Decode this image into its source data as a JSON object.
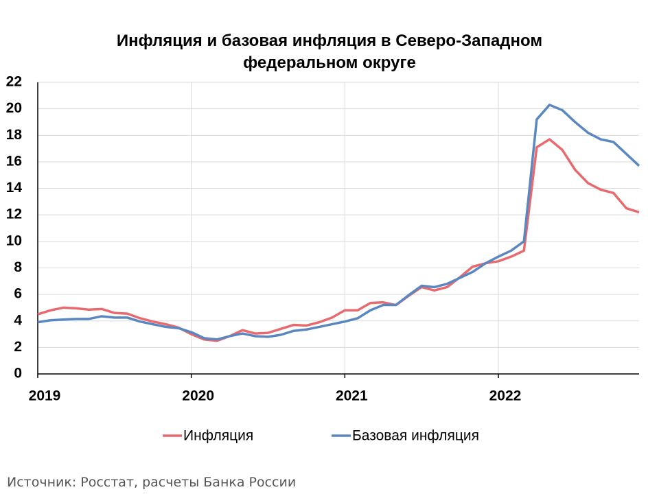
{
  "chart_data": {
    "type": "line",
    "title": "Инфляция и базовая инфляция в Северо-Западном федеральном округе",
    "source": "Источник: Росстат, расчеты Банка России",
    "categories": [
      "2019",
      null,
      null,
      null,
      null,
      null,
      null,
      null,
      null,
      null,
      null,
      null,
      "2020",
      null,
      null,
      null,
      null,
      null,
      null,
      null,
      null,
      null,
      null,
      null,
      "2021",
      null,
      null,
      null,
      null,
      null,
      null,
      null,
      null,
      null,
      null,
      null,
      "2022",
      null,
      null,
      null,
      null,
      null,
      null,
      null,
      null,
      null,
      null,
      null
    ],
    "series": [
      {
        "name": "Инфляция",
        "color": "#e8696e",
        "values": [
          4.5,
          4.8,
          5.0,
          4.95,
          4.85,
          4.9,
          4.6,
          4.55,
          4.2,
          3.95,
          3.75,
          3.5,
          3.0,
          2.6,
          2.5,
          2.85,
          3.3,
          3.05,
          3.1,
          3.4,
          3.7,
          3.65,
          3.9,
          4.25,
          4.8,
          4.8,
          5.35,
          5.4,
          5.2,
          5.9,
          6.55,
          6.3,
          6.55,
          7.3,
          8.1,
          8.35,
          8.5,
          8.85,
          9.3,
          17.1,
          17.7,
          16.9,
          15.4,
          14.4,
          13.9,
          13.65,
          12.5,
          12.2
        ]
      },
      {
        "name": "Базовая инфляция",
        "color": "#5b87c0",
        "values": [
          3.9,
          4.05,
          4.1,
          4.15,
          4.15,
          4.35,
          4.25,
          4.25,
          3.95,
          3.75,
          3.55,
          3.45,
          3.15,
          2.7,
          2.6,
          2.85,
          3.05,
          2.85,
          2.8,
          2.95,
          3.25,
          3.35,
          3.55,
          3.75,
          3.95,
          4.2,
          4.8,
          5.2,
          5.2,
          5.95,
          6.65,
          6.55,
          6.8,
          7.25,
          7.7,
          8.35,
          8.85,
          9.3,
          10.0,
          19.2,
          20.3,
          19.9,
          19.0,
          18.2,
          17.7,
          17.5,
          16.6,
          15.7
        ]
      }
    ],
    "ylim": [
      0,
      22
    ],
    "yticks": [
      0,
      2,
      4,
      6,
      8,
      10,
      12,
      14,
      16,
      18,
      20,
      22
    ],
    "grid": true,
    "legend": "bottom"
  }
}
